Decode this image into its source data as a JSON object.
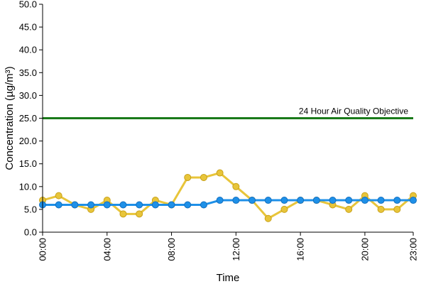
{
  "chart_data": {
    "type": "line",
    "title": "",
    "xlabel": "Time",
    "ylabel": "Concentration (µg/m³)",
    "ylim": [
      0,
      50
    ],
    "yticks": [
      "0.0",
      "5.0",
      "10.0",
      "15.0",
      "20.0",
      "25.0",
      "30.0",
      "35.0",
      "40.0",
      "45.0",
      "50.0"
    ],
    "xlim": [
      0,
      23
    ],
    "xticks": [
      {
        "x": 0,
        "label": "00:00"
      },
      {
        "x": 4,
        "label": "04:00"
      },
      {
        "x": 8,
        "label": "08:00"
      },
      {
        "x": 12,
        "label": "12:00"
      },
      {
        "x": 16,
        "label": "16:00"
      },
      {
        "x": 20,
        "label": "20:00"
      },
      {
        "x": 23,
        "label": "23:00"
      }
    ],
    "grid": false,
    "objective": {
      "label": "24 Hour Air Quality Objective",
      "value": 25,
      "color": "#1a7a1a"
    },
    "x": [
      0,
      1,
      2,
      3,
      4,
      5,
      6,
      7,
      8,
      9,
      10,
      11,
      12,
      13,
      14,
      15,
      16,
      17,
      18,
      19,
      20,
      21,
      22,
      23
    ],
    "series": [
      {
        "color": "#e8c53a",
        "values": [
          7,
          8,
          6,
          5,
          7,
          4,
          4,
          7,
          6,
          12,
          12,
          13,
          10,
          7,
          3,
          5,
          7,
          7,
          6,
          5,
          8,
          5,
          5,
          8
        ]
      },
      {
        "color": "#1e90e8",
        "values": [
          6,
          6,
          6,
          6,
          6,
          6,
          6,
          6,
          6,
          6,
          6,
          7,
          7,
          7,
          7,
          7,
          7,
          7,
          7,
          7,
          7,
          7,
          7,
          7
        ]
      }
    ]
  }
}
